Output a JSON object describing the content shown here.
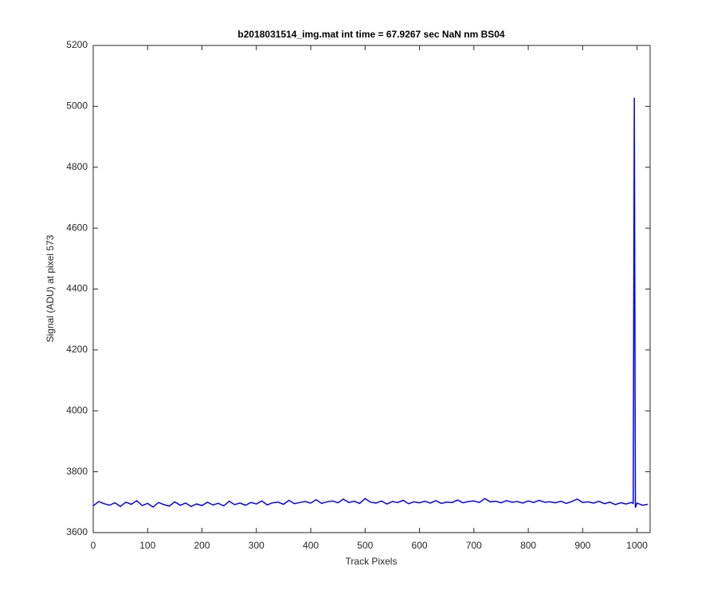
{
  "chart_data": {
    "type": "line",
    "title": "b2018031514_img.mat int time = 67.9267 sec  NaN nm BS04",
    "xlabel": "Track Pixels",
    "ylabel": "Signal (ADU) at pixel 573",
    "xlim": [
      0,
      1024
    ],
    "ylim": [
      3600,
      5200
    ],
    "xticks": [
      0,
      100,
      200,
      300,
      400,
      500,
      600,
      700,
      800,
      900,
      1000
    ],
    "yticks": [
      3600,
      3800,
      4000,
      4200,
      4400,
      4600,
      4800,
      5000,
      5200
    ],
    "grid": false,
    "series": [
      {
        "name": "signal",
        "color": "#0000ff",
        "x": [
          0,
          10,
          20,
          30,
          40,
          50,
          60,
          70,
          80,
          90,
          100,
          110,
          120,
          130,
          140,
          150,
          160,
          170,
          180,
          190,
          200,
          210,
          220,
          230,
          240,
          250,
          260,
          270,
          280,
          290,
          300,
          310,
          320,
          330,
          340,
          350,
          360,
          370,
          380,
          390,
          400,
          410,
          420,
          430,
          440,
          450,
          460,
          470,
          480,
          490,
          500,
          510,
          520,
          530,
          540,
          550,
          560,
          570,
          580,
          590,
          600,
          610,
          620,
          630,
          640,
          650,
          660,
          670,
          680,
          690,
          700,
          710,
          720,
          730,
          740,
          750,
          760,
          770,
          780,
          790,
          800,
          810,
          820,
          830,
          840,
          850,
          860,
          870,
          880,
          890,
          900,
          910,
          920,
          930,
          940,
          950,
          960,
          970,
          980,
          990,
          993,
          995,
          997,
          1000,
          1010,
          1020
        ],
        "values": [
          3688,
          3702,
          3695,
          3690,
          3698,
          3686,
          3700,
          3693,
          3705,
          3689,
          3696,
          3684,
          3699,
          3692,
          3687,
          3701,
          3690,
          3697,
          3686,
          3694,
          3689,
          3700,
          3691,
          3696,
          3688,
          3703,
          3692,
          3697,
          3690,
          3699,
          3694,
          3704,
          3691,
          3698,
          3700,
          3693,
          3706,
          3695,
          3699,
          3702,
          3697,
          3708,
          3696,
          3701,
          3704,
          3698,
          3710,
          3699,
          3703,
          3696,
          3712,
          3700,
          3697,
          3704,
          3694,
          3702,
          3699,
          3706,
          3695,
          3701,
          3698,
          3703,
          3697,
          3705,
          3696,
          3700,
          3699,
          3707,
          3698,
          3702,
          3704,
          3699,
          3712,
          3701,
          3703,
          3698,
          3705,
          3700,
          3702,
          3697,
          3704,
          3699,
          3706,
          3700,
          3701,
          3698,
          3703,
          3696,
          3702,
          3710,
          3699,
          3701,
          3697,
          3703,
          3695,
          3700,
          3692,
          3698,
          3694,
          3699,
          3696,
          5028,
          3682,
          3697,
          3690,
          3693
        ]
      }
    ]
  }
}
